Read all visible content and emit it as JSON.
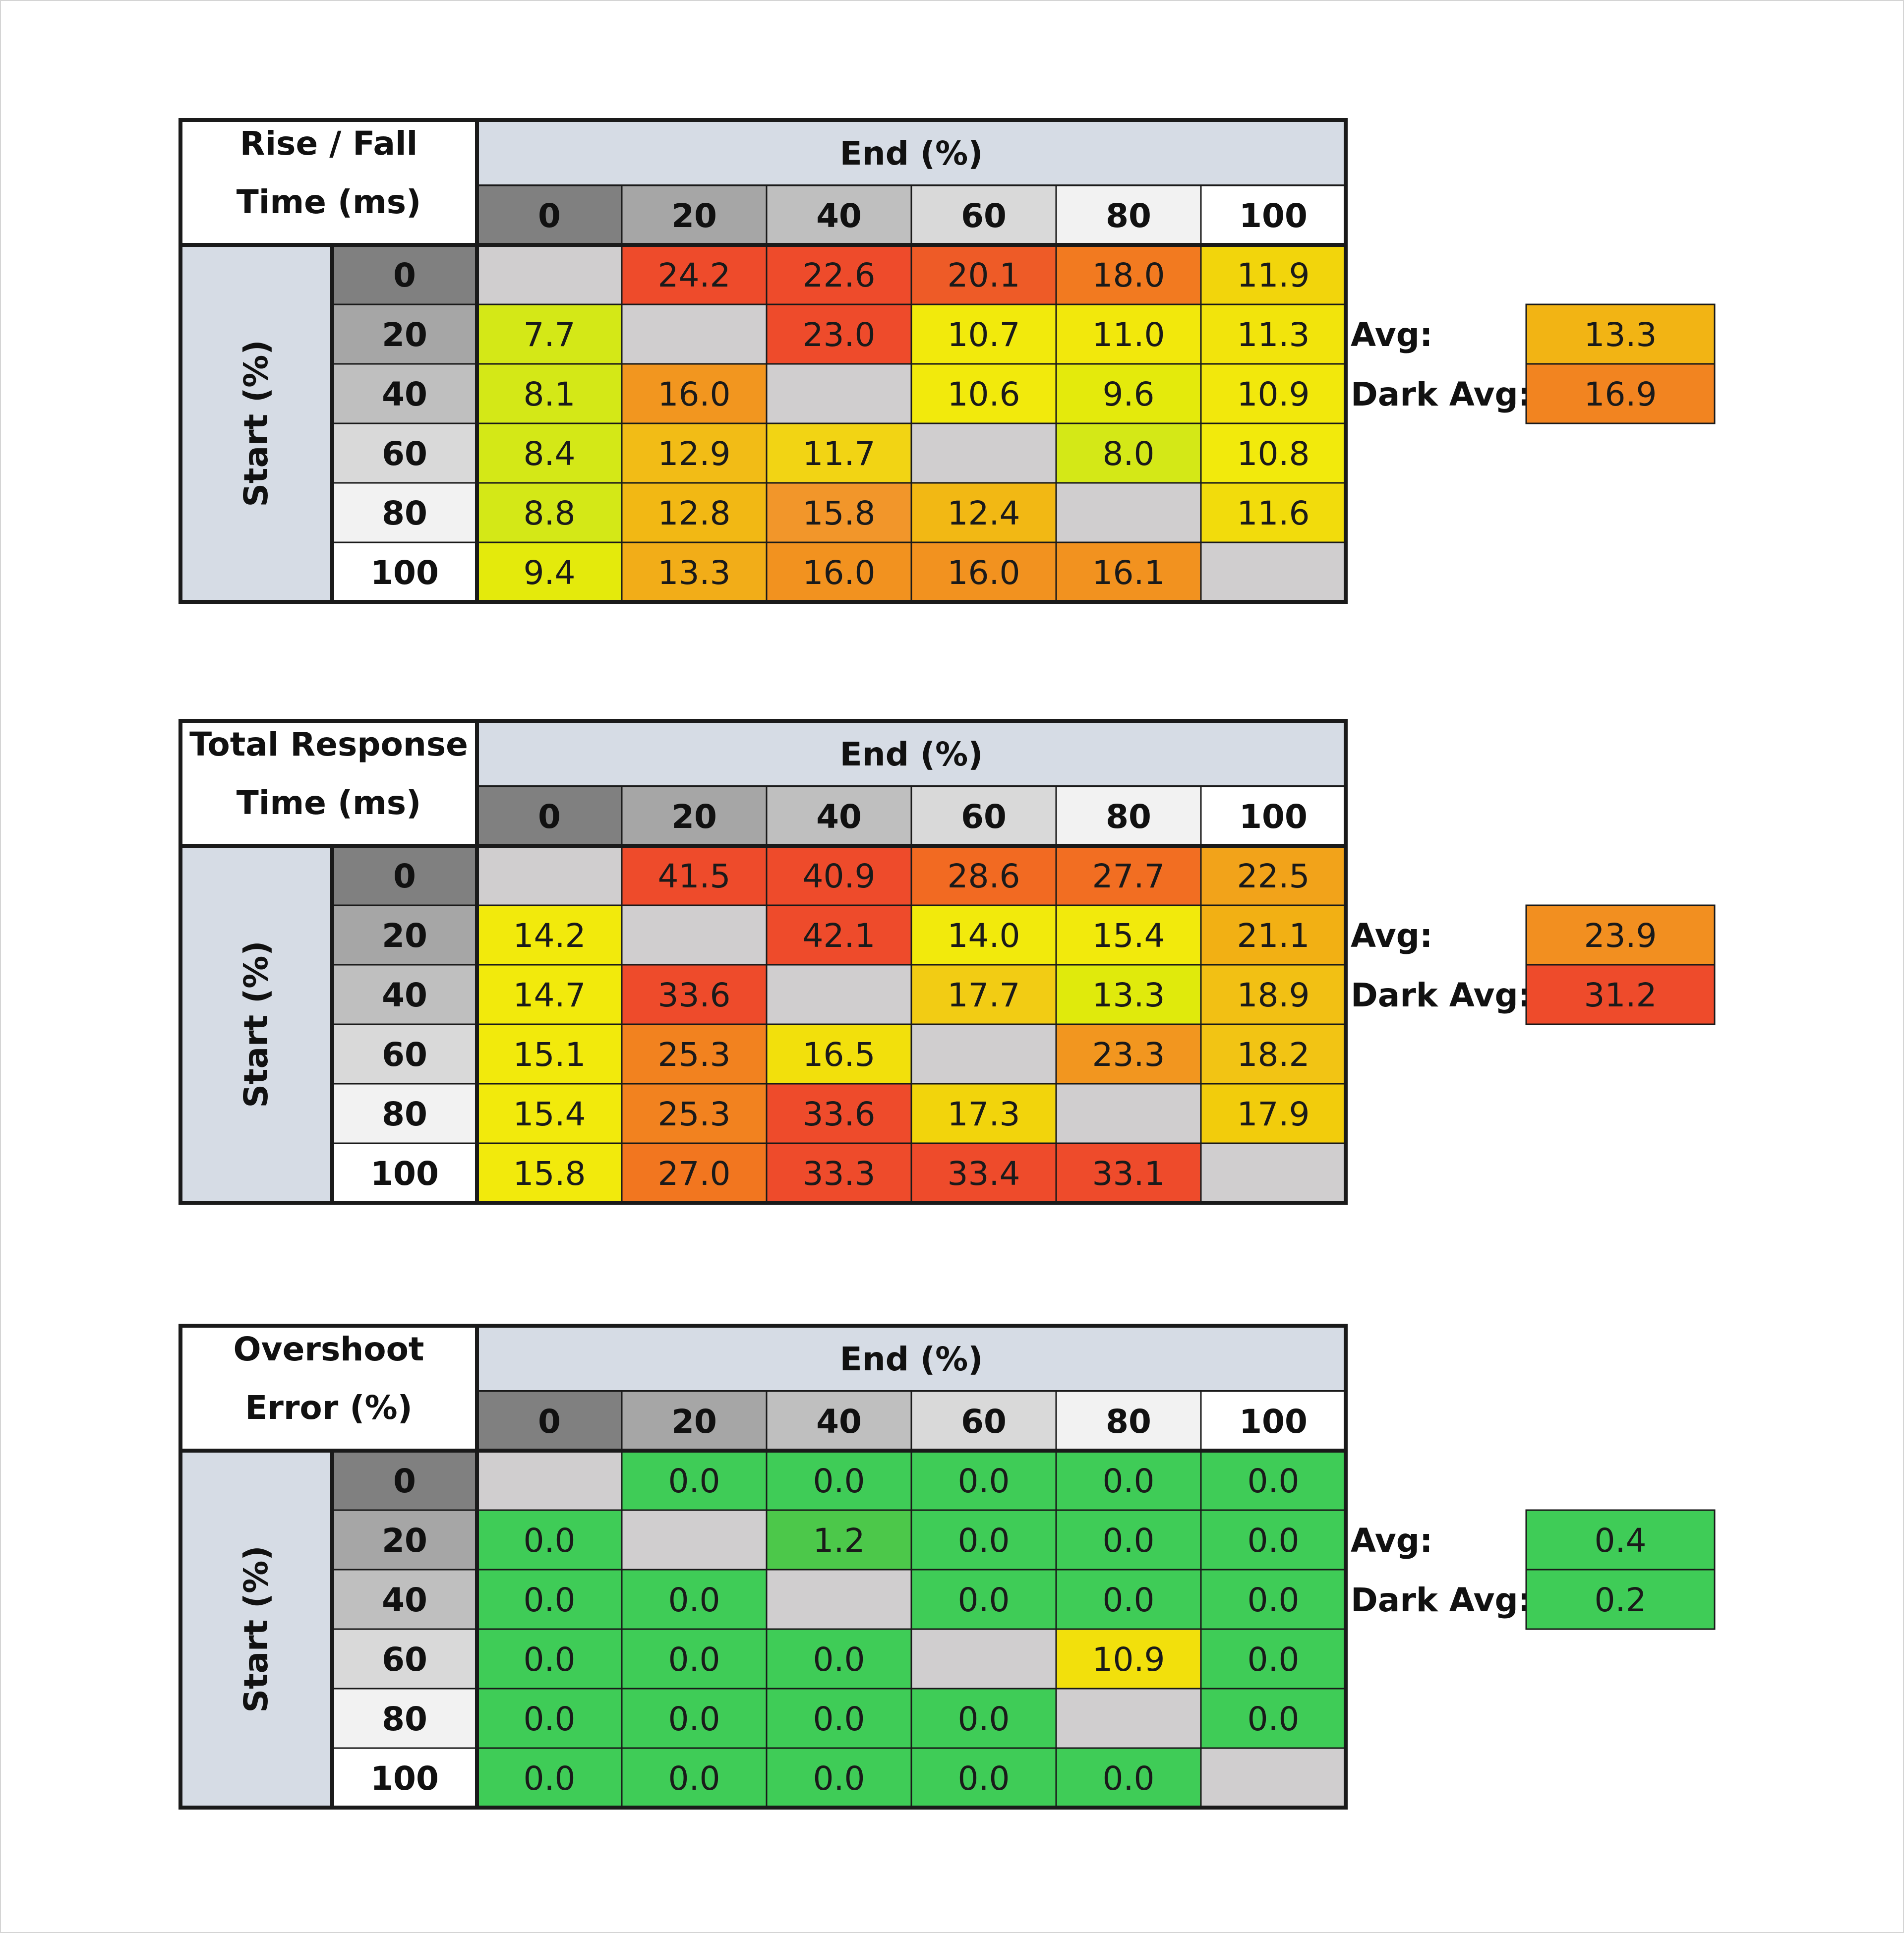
{
  "palette": {
    "cell_empty": "#d0cecf",
    "header_band": "#d6dce5",
    "grid_line": "#1a1a1a",
    "levels": [
      "#808080",
      "#a6a6a6",
      "#bfbfbf",
      "#d9d9d9",
      "#f2f2f2",
      "#ffffff"
    ],
    "scale_colors": [
      "#3fcc57",
      "#d4e817",
      "#f2ea0c",
      "#f2c81a",
      "#f28c28",
      "#ee4b2b"
    ]
  },
  "chart_data": [
    {
      "type": "heatmap",
      "title_lines": [
        "Rise / Fall",
        "Time (ms)"
      ],
      "xlabel": "End (%)",
      "ylabel": "Start (%)",
      "x": [
        "0",
        "20",
        "40",
        "60",
        "80",
        "100"
      ],
      "y": [
        "0",
        "20",
        "40",
        "60",
        "80",
        "100"
      ],
      "values": [
        [
          "",
          "24.2",
          "22.6",
          "20.1",
          "18.0",
          "11.9"
        ],
        [
          "7.7",
          "",
          "23.0",
          "10.7",
          "11.0",
          "11.3"
        ],
        [
          "8.1",
          "16.0",
          "",
          "10.6",
          "9.6",
          "10.9"
        ],
        [
          "8.4",
          "12.9",
          "11.7",
          "",
          "8.0",
          "10.8"
        ],
        [
          "8.8",
          "12.8",
          "15.8",
          "12.4",
          "",
          "11.6"
        ],
        [
          "9.4",
          "13.3",
          "16.0",
          "16.0",
          "16.1",
          ""
        ]
      ],
      "colors": [
        [
          "#d0cecf",
          "#ee4b2b",
          "#ee4b2b",
          "#ee5b27",
          "#f27a20",
          "#f2d50c"
        ],
        [
          "#d4e817",
          "#d0cecf",
          "#ee4b2b",
          "#f2ea0c",
          "#f2e80c",
          "#f2e40c"
        ],
        [
          "#d4e817",
          "#f2961f",
          "#d0cecf",
          "#f2ea0c",
          "#e4ea0c",
          "#f2e80c"
        ],
        [
          "#d4e817",
          "#f2bc16",
          "#f2d414",
          "#d0cecf",
          "#d4e817",
          "#f2ea0c"
        ],
        [
          "#d4e817",
          "#f2b814",
          "#f2962a",
          "#f2b814",
          "#d0cecf",
          "#f2dc0c"
        ],
        [
          "#e4ea0c",
          "#f2ad18",
          "#f2921f",
          "#f2921f",
          "#f2921f",
          "#d0cecf"
        ]
      ],
      "summary": [
        {
          "label": "Avg:",
          "value": "13.3",
          "color": "#f2b414"
        },
        {
          "label": "Dark Avg:",
          "value": "16.9",
          "color": "#f28420"
        }
      ]
    },
    {
      "type": "heatmap",
      "title_lines": [
        "Total Response",
        "Time (ms)"
      ],
      "xlabel": "End (%)",
      "ylabel": "Start (%)",
      "x": [
        "0",
        "20",
        "40",
        "60",
        "80",
        "100"
      ],
      "y": [
        "0",
        "20",
        "40",
        "60",
        "80",
        "100"
      ],
      "values": [
        [
          "",
          "41.5",
          "40.9",
          "28.6",
          "27.7",
          "22.5"
        ],
        [
          "14.2",
          "",
          "42.1",
          "14.0",
          "15.4",
          "21.1"
        ],
        [
          "14.7",
          "33.6",
          "",
          "17.7",
          "13.3",
          "18.9"
        ],
        [
          "15.1",
          "25.3",
          "16.5",
          "",
          "23.3",
          "18.2"
        ],
        [
          "15.4",
          "25.3",
          "33.6",
          "17.3",
          "",
          "17.9"
        ],
        [
          "15.8",
          "27.0",
          "33.3",
          "33.4",
          "33.1",
          ""
        ]
      ],
      "colors": [
        [
          "#d0cecf",
          "#ee4b2b",
          "#ee4b2b",
          "#f26a22",
          "#f26e22",
          "#f2a31a"
        ],
        [
          "#f2ea0c",
          "#d0cecf",
          "#ee4b2b",
          "#f2ea0c",
          "#f2ea0c",
          "#f2b014"
        ],
        [
          "#f2ea0c",
          "#ee4b2b",
          "#d0cecf",
          "#f2cc14",
          "#e0ea0c",
          "#f2c014"
        ],
        [
          "#f2ea0c",
          "#f2821f",
          "#f2e00c",
          "#d0cecf",
          "#f2961f",
          "#f2c414"
        ],
        [
          "#f2ea0c",
          "#f2821f",
          "#ee4b2b",
          "#f2d40c",
          "#d0cecf",
          "#f2cc0c"
        ],
        [
          "#f2ea0c",
          "#f2761f",
          "#ee4b2b",
          "#ee4b2b",
          "#ee4b2b",
          "#d0cecf"
        ]
      ],
      "summary": [
        {
          "label": "Avg:",
          "value": "23.9",
          "color": "#f28f20"
        },
        {
          "label": "Dark Avg:",
          "value": "31.2",
          "color": "#ee4b2b"
        }
      ]
    },
    {
      "type": "heatmap",
      "title_lines": [
        "Overshoot",
        "Error (%)"
      ],
      "xlabel": "End (%)",
      "ylabel": "Start (%)",
      "x": [
        "0",
        "20",
        "40",
        "60",
        "80",
        "100"
      ],
      "y": [
        "0",
        "20",
        "40",
        "60",
        "80",
        "100"
      ],
      "values": [
        [
          "",
          "0.0",
          "0.0",
          "0.0",
          "0.0",
          "0.0"
        ],
        [
          "0.0",
          "",
          "1.2",
          "0.0",
          "0.0",
          "0.0"
        ],
        [
          "0.0",
          "0.0",
          "",
          "0.0",
          "0.0",
          "0.0"
        ],
        [
          "0.0",
          "0.0",
          "0.0",
          "",
          "10.9",
          "0.0"
        ],
        [
          "0.0",
          "0.0",
          "0.0",
          "0.0",
          "",
          "0.0"
        ],
        [
          "0.0",
          "0.0",
          "0.0",
          "0.0",
          "0.0",
          ""
        ]
      ],
      "colors": [
        [
          "#d0cecf",
          "#3fcc57",
          "#3fcc57",
          "#3fcc57",
          "#3fcc57",
          "#3fcc57"
        ],
        [
          "#3fcc57",
          "#d0cecf",
          "#4cc84a",
          "#3fcc57",
          "#3fcc57",
          "#3fcc57"
        ],
        [
          "#3fcc57",
          "#3fcc57",
          "#d0cecf",
          "#3fcc57",
          "#3fcc57",
          "#3fcc57"
        ],
        [
          "#3fcc57",
          "#3fcc57",
          "#3fcc57",
          "#d0cecf",
          "#f2e00c",
          "#3fcc57"
        ],
        [
          "#3fcc57",
          "#3fcc57",
          "#3fcc57",
          "#3fcc57",
          "#d0cecf",
          "#3fcc57"
        ],
        [
          "#3fcc57",
          "#3fcc57",
          "#3fcc57",
          "#3fcc57",
          "#3fcc57",
          "#d0cecf"
        ]
      ],
      "summary": [
        {
          "label": "Avg:",
          "value": "0.4",
          "color": "#3fcc57"
        },
        {
          "label": "Dark Avg:",
          "value": "0.2",
          "color": "#3fcc57"
        }
      ]
    }
  ]
}
